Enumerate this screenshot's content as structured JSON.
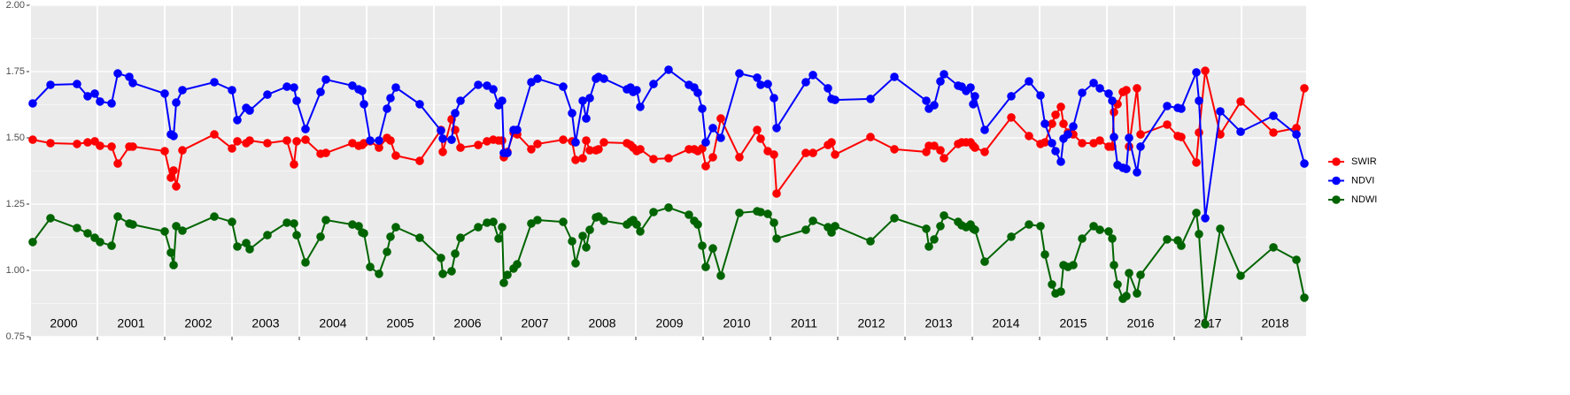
{
  "chart_data": {
    "type": "line",
    "x": [
      2000.039,
      2000.303,
      2000.697,
      2000.855,
      2000.961,
      2001.039,
      2001.211,
      2001.303,
      2001.474,
      2001.526,
      2002.0,
      2002.092,
      2002.132,
      2002.171,
      2002.263,
      2002.737,
      2003.0,
      2003.079,
      2003.211,
      2003.263,
      2003.526,
      2003.816,
      2003.921,
      2003.961,
      2004.092,
      2004.316,
      2004.395,
      2004.789,
      2004.882,
      2004.934,
      2004.961,
      2005.053,
      2005.184,
      2005.303,
      2005.355,
      2005.434,
      2005.789,
      2006.105,
      2006.132,
      2006.263,
      2006.316,
      2006.395,
      2006.658,
      2006.789,
      2006.882,
      2006.961,
      2007.013,
      2007.039,
      2007.092,
      2007.184,
      2007.237,
      2007.447,
      2007.539,
      2007.921,
      2008.053,
      2008.105,
      2008.211,
      2008.263,
      2008.316,
      2008.408,
      2008.447,
      2008.526,
      2008.868,
      2008.921,
      2008.961,
      2009.013,
      2009.066,
      2009.263,
      2009.487,
      2009.789,
      2009.868,
      2009.921,
      2009.987,
      2010.039,
      2010.145,
      2010.263,
      2010.539,
      2010.803,
      2010.855,
      2010.961,
      2011.053,
      2011.092,
      2011.526,
      2011.632,
      2011.855,
      2011.908,
      2011.961,
      2012.487,
      2012.842,
      2013.316,
      2013.355,
      2013.434,
      2013.526,
      2013.579,
      2013.789,
      2013.842,
      2013.908,
      2013.974,
      2014.013,
      2014.039,
      2014.184,
      2014.579,
      2014.842,
      2015.013,
      2015.079,
      2015.184,
      2015.237,
      2015.316,
      2015.355,
      2015.421,
      2015.5,
      2015.632,
      2015.803,
      2015.895,
      2016.026,
      2016.079,
      2016.105,
      2016.158,
      2016.237,
      2016.289,
      2016.329,
      2016.447,
      2016.5,
      2016.895,
      2017.053,
      2017.105,
      2017.329,
      2017.368,
      2017.461,
      2017.684,
      2017.987,
      2018.474,
      2018.816,
      2018.934
    ],
    "series": [
      {
        "name": "SWIR",
        "color": "#ff0000",
        "values": [
          1.493,
          1.48,
          1.477,
          1.483,
          1.487,
          1.47,
          1.467,
          1.403,
          1.467,
          1.467,
          1.45,
          1.35,
          1.377,
          1.317,
          1.453,
          1.513,
          1.46,
          1.487,
          1.48,
          1.49,
          1.48,
          1.49,
          1.4,
          1.487,
          1.493,
          1.44,
          1.443,
          1.48,
          1.47,
          1.473,
          1.48,
          1.487,
          1.463,
          1.5,
          1.49,
          1.433,
          1.413,
          1.53,
          1.447,
          1.57,
          1.53,
          1.463,
          1.473,
          1.487,
          1.493,
          1.49,
          1.49,
          1.427,
          1.447,
          1.52,
          1.513,
          1.457,
          1.477,
          1.493,
          1.487,
          1.417,
          1.423,
          1.49,
          1.453,
          1.453,
          1.457,
          1.483,
          1.48,
          1.473,
          1.463,
          1.45,
          1.457,
          1.42,
          1.423,
          1.457,
          1.457,
          1.45,
          1.46,
          1.393,
          1.427,
          1.573,
          1.427,
          1.53,
          1.497,
          1.45,
          1.437,
          1.29,
          1.443,
          1.443,
          1.473,
          1.483,
          1.437,
          1.503,
          1.457,
          1.447,
          1.47,
          1.47,
          1.453,
          1.423,
          1.477,
          1.483,
          1.483,
          1.483,
          1.47,
          1.463,
          1.447,
          1.577,
          1.507,
          1.477,
          1.483,
          1.553,
          1.587,
          1.617,
          1.553,
          1.52,
          1.513,
          1.48,
          1.48,
          1.49,
          1.467,
          1.467,
          1.597,
          1.627,
          1.673,
          1.68,
          1.467,
          1.687,
          1.513,
          1.55,
          1.507,
          1.503,
          1.407,
          1.52,
          1.753,
          1.513,
          1.637,
          1.52,
          1.537,
          1.687
        ]
      },
      {
        "name": "NDVI",
        "color": "#0000ff",
        "values": [
          1.63,
          1.7,
          1.703,
          1.657,
          1.667,
          1.637,
          1.63,
          1.743,
          1.73,
          1.707,
          1.667,
          1.513,
          1.507,
          1.633,
          1.68,
          1.71,
          1.68,
          1.567,
          1.613,
          1.603,
          1.663,
          1.693,
          1.69,
          1.64,
          1.533,
          1.673,
          1.72,
          1.697,
          1.683,
          1.677,
          1.627,
          1.49,
          1.49,
          1.61,
          1.65,
          1.69,
          1.627,
          1.527,
          1.497,
          1.493,
          1.593,
          1.64,
          1.7,
          1.697,
          1.683,
          1.623,
          1.64,
          1.443,
          1.443,
          1.53,
          1.53,
          1.71,
          1.723,
          1.693,
          1.593,
          1.483,
          1.64,
          1.573,
          1.65,
          1.723,
          1.73,
          1.723,
          1.683,
          1.69,
          1.673,
          1.68,
          1.617,
          1.703,
          1.757,
          1.7,
          1.69,
          1.67,
          1.61,
          1.483,
          1.537,
          1.5,
          1.743,
          1.727,
          1.7,
          1.703,
          1.65,
          1.537,
          1.71,
          1.737,
          1.687,
          1.647,
          1.643,
          1.647,
          1.73,
          1.64,
          1.61,
          1.623,
          1.713,
          1.74,
          1.697,
          1.693,
          1.677,
          1.69,
          1.627,
          1.657,
          1.53,
          1.657,
          1.713,
          1.66,
          1.553,
          1.48,
          1.45,
          1.41,
          1.497,
          1.513,
          1.543,
          1.67,
          1.707,
          1.687,
          1.667,
          1.64,
          1.503,
          1.397,
          1.387,
          1.383,
          1.5,
          1.37,
          1.467,
          1.62,
          1.613,
          1.61,
          1.747,
          1.64,
          1.197,
          1.6,
          1.523,
          1.583,
          1.513,
          1.403
        ]
      },
      {
        "name": "NDWI",
        "color": "#006400",
        "values": [
          1.107,
          1.197,
          1.16,
          1.14,
          1.123,
          1.107,
          1.093,
          1.203,
          1.177,
          1.173,
          1.147,
          1.067,
          1.02,
          1.167,
          1.15,
          1.203,
          1.183,
          1.09,
          1.103,
          1.08,
          1.133,
          1.18,
          1.177,
          1.133,
          1.03,
          1.127,
          1.19,
          1.173,
          1.167,
          1.143,
          1.14,
          1.013,
          0.987,
          1.07,
          1.127,
          1.163,
          1.123,
          1.047,
          0.987,
          0.997,
          1.063,
          1.123,
          1.163,
          1.18,
          1.183,
          1.12,
          1.163,
          0.953,
          0.983,
          1.007,
          1.023,
          1.177,
          1.19,
          1.183,
          1.11,
          1.027,
          1.13,
          1.087,
          1.153,
          1.2,
          1.203,
          1.187,
          1.173,
          1.183,
          1.19,
          1.173,
          1.147,
          1.22,
          1.237,
          1.21,
          1.187,
          1.173,
          1.093,
          1.013,
          1.083,
          0.98,
          1.217,
          1.223,
          1.22,
          1.213,
          1.18,
          1.12,
          1.153,
          1.187,
          1.163,
          1.143,
          1.167,
          1.11,
          1.197,
          1.157,
          1.09,
          1.117,
          1.167,
          1.207,
          1.183,
          1.17,
          1.163,
          1.173,
          1.157,
          1.153,
          1.033,
          1.127,
          1.173,
          1.167,
          1.06,
          0.947,
          0.913,
          0.92,
          1.02,
          1.013,
          1.02,
          1.12,
          1.167,
          1.153,
          1.147,
          1.12,
          1.02,
          0.947,
          0.893,
          0.903,
          0.99,
          0.913,
          0.983,
          1.117,
          1.113,
          1.093,
          1.217,
          1.137,
          0.797,
          1.157,
          0.98,
          1.087,
          1.04,
          0.897
        ]
      }
    ],
    "xlim": [
      2000,
      2018.96
    ],
    "xticks": [
      2000,
      2001,
      2002,
      2003,
      2004,
      2005,
      2006,
      2007,
      2008,
      2009,
      2010,
      2011,
      2012,
      2013,
      2014,
      2015,
      2016,
      2017,
      2018
    ],
    "ylim": [
      0.75,
      2.0
    ],
    "yticks": [
      0.75,
      {
        "value": 1.0,
        "label": "1.00"
      },
      1.25,
      {
        "value": 1.5,
        "label": "1.50"
      },
      1.75,
      {
        "value": 2.0,
        "label": "2.00"
      }
    ],
    "grid": true,
    "legend": "right"
  }
}
